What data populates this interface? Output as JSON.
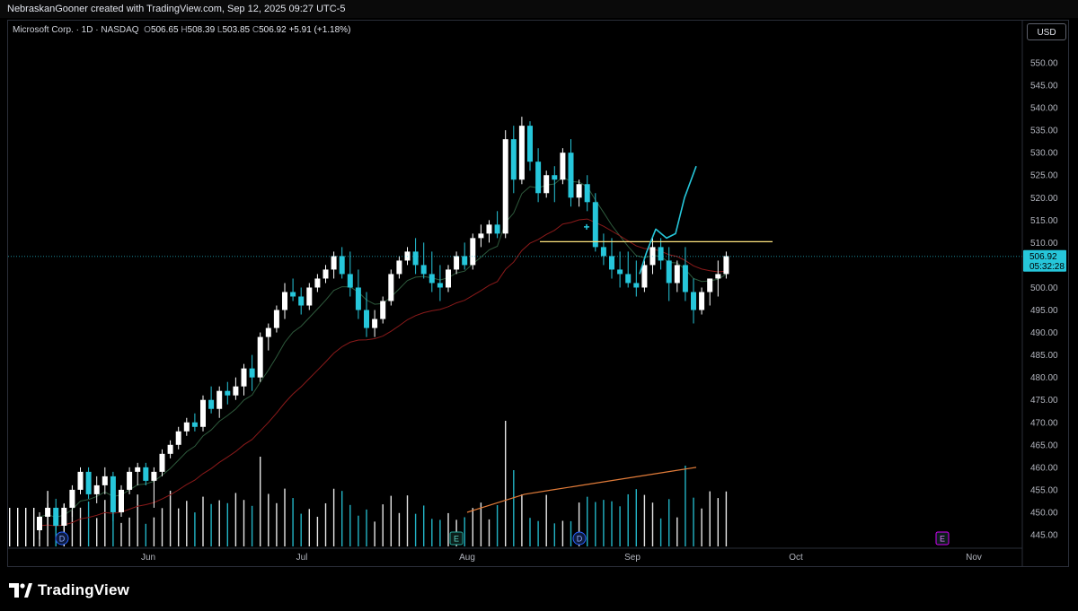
{
  "attribution": "NebraskanGooner created with TradingView.com, Sep 12, 2025 09:27 UTC-5",
  "symbol": {
    "name": "Microsoft Corp. · 1D · NASDAQ",
    "open_label": "O",
    "open": "506.65",
    "high_label": "H",
    "high": "508.39",
    "low_label": "L",
    "low": "503.85",
    "close_label": "C",
    "close": "506.92",
    "change": "+5.91 (+1.18%)"
  },
  "currency": "USD",
  "last_price": {
    "price": "506.92",
    "countdown": "05:32:28"
  },
  "brand": "TradingView",
  "colors": {
    "up": "#ffffff",
    "down": "#26c6da",
    "ema_fast": "#2e5a3c",
    "ema_slow": "#8b1a1a",
    "projection": "#26c6da",
    "resistance": "#ffe57f",
    "volume_ma": "#e07b39",
    "background": "#000000",
    "event_icon_dividend": "#2962ff",
    "event_icon_earnings": "#26a69a",
    "event_icon_future_earnings": "#d500f9"
  },
  "chart_data": {
    "type": "candlestick",
    "title": "Microsoft Corp. · 1D · NASDAQ",
    "y_axis": {
      "ticks": [
        "550.00",
        "545.00",
        "540.00",
        "535.00",
        "530.00",
        "525.00",
        "520.00",
        "515.00",
        "510.00",
        "505.00",
        "500.00",
        "495.00",
        "490.00",
        "485.00",
        "480.00",
        "475.00",
        "470.00",
        "465.00",
        "460.00",
        "455.00",
        "450.00",
        "445.00"
      ],
      "range": [
        443,
        556
      ]
    },
    "x_axis": {
      "labels": [
        "Jun",
        "Jul",
        "Aug",
        "Sep",
        "Oct",
        "Nov"
      ]
    },
    "candles": [
      [
        446,
        450,
        444,
        449
      ],
      [
        449,
        452,
        447,
        451
      ],
      [
        451,
        453,
        446,
        447
      ],
      [
        447,
        452,
        446,
        451
      ],
      [
        451,
        456,
        449,
        455
      ],
      [
        455,
        460,
        454,
        459
      ],
      [
        459,
        460,
        453,
        454
      ],
      [
        454,
        458,
        452,
        456
      ],
      [
        456,
        460,
        454,
        458
      ],
      [
        458,
        459,
        448,
        450
      ],
      [
        450,
        456,
        449,
        455
      ],
      [
        455,
        460,
        454,
        459
      ],
      [
        459,
        461,
        456,
        460
      ],
      [
        460,
        461,
        456,
        457
      ],
      [
        457,
        460,
        451,
        459
      ],
      [
        459,
        464,
        458,
        463
      ],
      [
        463,
        466,
        462,
        465
      ],
      [
        465,
        469,
        464,
        468
      ],
      [
        468,
        471,
        467,
        470
      ],
      [
        470,
        472,
        468,
        469
      ],
      [
        469,
        476,
        468,
        475
      ],
      [
        475,
        478,
        472,
        473
      ],
      [
        473,
        478,
        471,
        477
      ],
      [
        477,
        479,
        474,
        476
      ],
      [
        476,
        480,
        475,
        478
      ],
      [
        478,
        483,
        476,
        482
      ],
      [
        482,
        485,
        477,
        480
      ],
      [
        480,
        490,
        479,
        489
      ],
      [
        489,
        492,
        486,
        491
      ],
      [
        491,
        496,
        490,
        495
      ],
      [
        495,
        501,
        493,
        499
      ],
      [
        499,
        502,
        497,
        498
      ],
      [
        498,
        500,
        494,
        496
      ],
      [
        496,
        501,
        495,
        500
      ],
      [
        500,
        503,
        499,
        502
      ],
      [
        502,
        505,
        501,
        504
      ],
      [
        504,
        508,
        502,
        507
      ],
      [
        507,
        509,
        502,
        503
      ],
      [
        503,
        508,
        498,
        500
      ],
      [
        500,
        504,
        493,
        495
      ],
      [
        495,
        499,
        489,
        491
      ],
      [
        491,
        495,
        489,
        493
      ],
      [
        493,
        498,
        492,
        497
      ],
      [
        497,
        504,
        496,
        503
      ],
      [
        503,
        507,
        502,
        506
      ],
      [
        506,
        509,
        505,
        508
      ],
      [
        508,
        511,
        503,
        505
      ],
      [
        505,
        510,
        502,
        503
      ],
      [
        503,
        508,
        499,
        501
      ],
      [
        501,
        505,
        497,
        500
      ],
      [
        500,
        505,
        499,
        504
      ],
      [
        504,
        508,
        503,
        507
      ],
      [
        507,
        510,
        504,
        505
      ],
      [
        505,
        512,
        504,
        511
      ],
      [
        511,
        514,
        509,
        512
      ],
      [
        512,
        515,
        510,
        514
      ],
      [
        514,
        517,
        511,
        512
      ],
      [
        512,
        535,
        511,
        533
      ],
      [
        533,
        536,
        521,
        524
      ],
      [
        524,
        538,
        523,
        536
      ],
      [
        536,
        537,
        526,
        528
      ],
      [
        528,
        531,
        519,
        521
      ],
      [
        521,
        526,
        520,
        525
      ],
      [
        525,
        527,
        519,
        524
      ],
      [
        524,
        531,
        523,
        530
      ],
      [
        530,
        533,
        518,
        520
      ],
      [
        520,
        524,
        518,
        523
      ],
      [
        523,
        525,
        517,
        519
      ],
      [
        519,
        521,
        508,
        509
      ],
      [
        509,
        512,
        505,
        507
      ],
      [
        507,
        511,
        502,
        504
      ],
      [
        504,
        508,
        500,
        503
      ],
      [
        503,
        508,
        500,
        501
      ],
      [
        501,
        506,
        498,
        500
      ],
      [
        500,
        506,
        499,
        505
      ],
      [
        505,
        511,
        503,
        509
      ],
      [
        509,
        511,
        504,
        506
      ],
      [
        506,
        509,
        497,
        501
      ],
      [
        501,
        506,
        499,
        505
      ],
      [
        505,
        509,
        497,
        499
      ],
      [
        499,
        502,
        492,
        495
      ],
      [
        495,
        500,
        494,
        499
      ],
      [
        499,
        502,
        496,
        502
      ],
      [
        502,
        506,
        498,
        503
      ],
      [
        503,
        508,
        502,
        507
      ]
    ],
    "volume_ma": [
      450,
      452,
      454,
      455,
      456,
      457,
      458,
      459,
      460
    ],
    "resistance_level": 510.2,
    "last_close": 506.92,
    "events": [
      {
        "type": "dividend",
        "label": "D"
      },
      {
        "type": "earnings",
        "label": "E"
      },
      {
        "type": "dividend",
        "label": "D"
      },
      {
        "type": "earnings",
        "label": "E"
      }
    ]
  }
}
